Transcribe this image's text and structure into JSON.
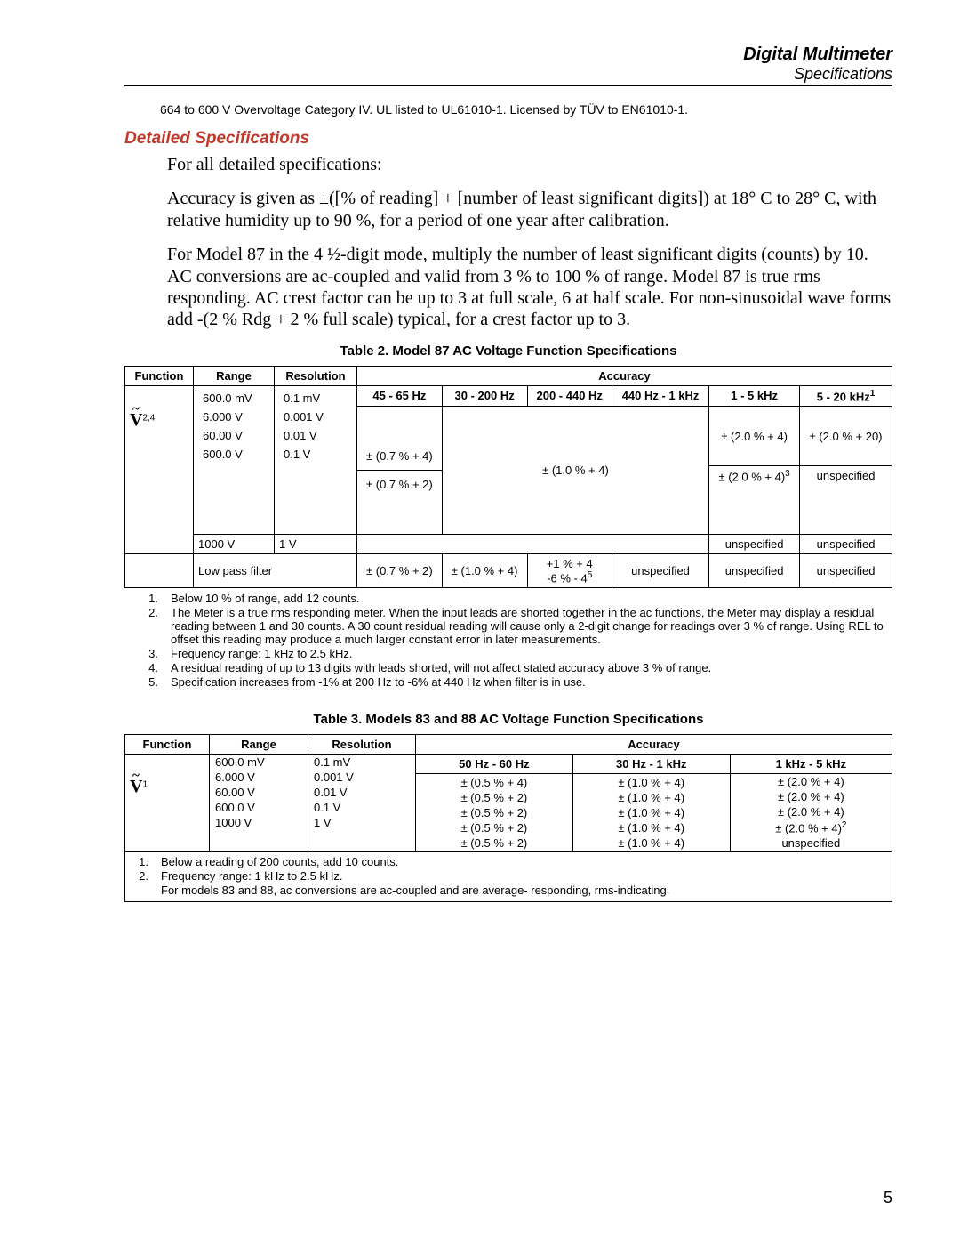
{
  "header": {
    "title": "Digital Multimeter",
    "subtitle": "Specifications"
  },
  "pre_note": "664 to 600 V Overvoltage Category IV. UL listed to UL61010-1. Licensed by TÜV to EN61010-1.",
  "section_title": "Detailed Specifications",
  "para1": "For all detailed specifications:",
  "para2": "Accuracy is given as ±([% of reading] + [number of least significant digits]) at 18° C to 28° C, with relative humidity up to 90 %, for a period of one year after calibration.",
  "para3": "For Model 87 in the 4 ½-digit mode, multiply the number of least significant digits (counts) by 10. AC conversions are ac-coupled and valid from 3 % to 100 % of range. Model 87 is true rms responding. AC crest factor can be up to 3 at full scale, 6 at half scale. For non-sinusoidal wave forms add -(2 % Rdg + 2 % full scale) typical, for a crest factor up to 3.",
  "table2": {
    "caption": "Table 2. Model 87 AC Voltage Function Specifications",
    "headers": {
      "function": "Function",
      "range": "Range",
      "resolution": "Resolution",
      "accuracy": "Accuracy"
    },
    "sub_headers": [
      "45 - 65 Hz",
      "30 - 200 Hz",
      "200 - 440 Hz",
      "440 Hz - 1 kHz",
      "1 - 5 kHz",
      "5 - 20 kHz"
    ],
    "sub_header_note": "1",
    "function_note": "2,4",
    "ranges": [
      "600.0 mV",
      "6.000 V",
      "60.00 V",
      "600.0 V"
    ],
    "resolutions": [
      "0.1 mV",
      "0.001 V",
      "0.01 V",
      "0.1 V"
    ],
    "acc_a1": "± (0.7 % + 4)",
    "acc_a2": "± (0.7 % + 2)",
    "acc_b": "± (1.0 % + 4)",
    "acc_c1": "± (2.0 % + 4)",
    "acc_c2": "± (2.0 % + 4)",
    "acc_c2_note": "3",
    "acc_d1": "± (2.0 % + 20)",
    "acc_d2": "unspecified",
    "row_1000": {
      "range": "1000 V",
      "res": "1 V",
      "col5": "unspecified",
      "col6": "unspecified"
    },
    "row_lpf": {
      "label": "Low pass filter",
      "c1": "± (0.7 % + 2)",
      "c2": "± (1.0 % + 4)",
      "c3_top": "+1 % + 4",
      "c3_bot": "-6 % - 4",
      "c3_note": "5",
      "c4": "unspecified",
      "c5": "unspecified",
      "c6": "unspecified"
    },
    "footnotes": [
      {
        "n": "1.",
        "t": "Below 10 % of range, add 12 counts."
      },
      {
        "n": "2.",
        "t": "The Meter is a true rms responding meter. When the input leads are shorted together in the ac functions, the Meter may display a residual reading between 1 and 30 counts. A 30 count residual reading will cause only a 2-digit change for readings over 3 % of range. Using REL to offset this reading may produce a much larger constant error in later measurements."
      },
      {
        "n": "3.",
        "t": "Frequency range: 1 kHz to 2.5 kHz."
      },
      {
        "n": "4.",
        "t": "A residual reading of up to 13 digits with leads shorted, will not affect stated accuracy above 3 % of range."
      },
      {
        "n": "5.",
        "t": "Specification increases from -1% at 200 Hz to -6% at 440 Hz when filter is in use."
      }
    ]
  },
  "table3": {
    "caption": "Table 3. Models 83 and 88 AC Voltage Function Specifications",
    "headers": {
      "function": "Function",
      "range": "Range",
      "resolution": "Resolution",
      "accuracy": "Accuracy"
    },
    "sub_headers": [
      "50 Hz - 60 Hz",
      "30 Hz - 1 kHz",
      "1 kHz - 5 kHz"
    ],
    "function_note": "1",
    "rows": [
      {
        "range": "600.0 mV",
        "res": "0.1 mV",
        "a": "± (0.5 % + 4)",
        "b": "± (1.0 % + 4)",
        "c": "± (2.0 % + 4)"
      },
      {
        "range": "6.000 V",
        "res": "0.001 V",
        "a": "± (0.5 % + 2)",
        "b": "± (1.0 % + 4)",
        "c": "± (2.0 % + 4)"
      },
      {
        "range": "60.00 V",
        "res": "0.01 V",
        "a": "± (0.5 % + 2)",
        "b": "± (1.0 % + 4)",
        "c": "± (2.0 % + 4)"
      },
      {
        "range": "600.0 V",
        "res": "0.1 V",
        "a": "± (0.5 % + 2)",
        "b": "± (1.0 % + 4)",
        "c": "± (2.0 % + 4)",
        "c_note": "2"
      },
      {
        "range": "1000 V",
        "res": "1 V",
        "a": "± (0.5 % + 2)",
        "b": "± (1.0 % + 4)",
        "c": "unspecified"
      }
    ],
    "footnotes": [
      {
        "n": "1.",
        "t": "Below a reading of 200 counts, add 10 counts."
      },
      {
        "n": "2.",
        "t": "Frequency range:  1 kHz to 2.5 kHz."
      },
      {
        "n": "",
        "t": "For models 83 and 88, ac conversions are ac-coupled and are average- responding, rms-indicating."
      }
    ]
  },
  "page_number": "5"
}
